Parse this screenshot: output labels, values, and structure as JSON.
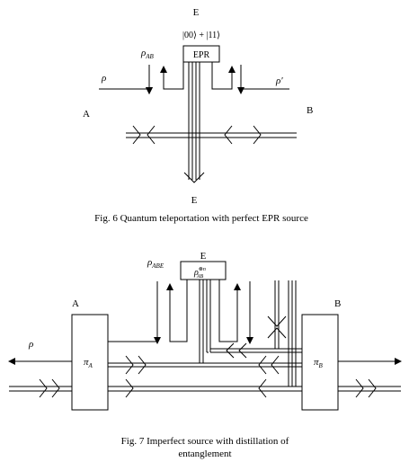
{
  "fig6": {
    "label_top_E": "E",
    "state": "|00⟩ + |11⟩",
    "rho_ab": "ρ",
    "rho_ab_sub": "AB",
    "epr_box": "EPR",
    "rho_left": "ρ",
    "rho_right": "ρ′",
    "label_A": "A",
    "label_B": "B",
    "label_bottom_E": "E",
    "caption": "Fig. 6  Quantum teleportation with perfect EPR source"
  },
  "fig7": {
    "label_E": "E",
    "rho_abe": "ρ",
    "rho_abe_sub": "ABE",
    "source_box": "ρ",
    "source_box_sub": "AB",
    "source_box_sup": "⊗n",
    "label_A": "A",
    "label_B": "B",
    "rho_left": "ρ",
    "pi_a": "π",
    "pi_a_sub": "A",
    "pi_b": "π",
    "pi_b_sub": "B",
    "caption_line1": "Fig. 7 Imperfect source with distillation of",
    "caption_line2": "entanglement"
  }
}
